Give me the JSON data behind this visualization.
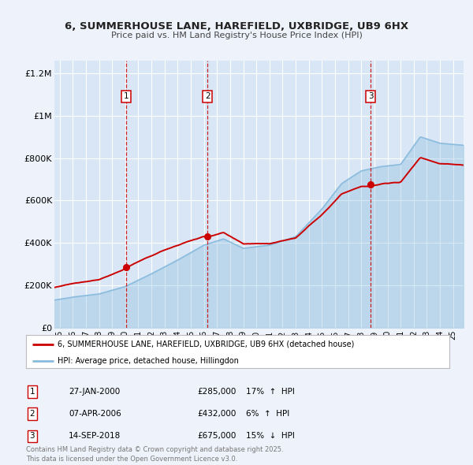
{
  "title": "6, SUMMERHOUSE LANE, HAREFIELD, UXBRIDGE, UB9 6HX",
  "subtitle": "Price paid vs. HM Land Registry's House Price Index (HPI)",
  "bg_color": "#eef2fa",
  "plot_bg_color": "#d8e6f5",
  "grid_color": "#ffffff",
  "sale_line_color": "#cc0000",
  "hpi_line_color": "#88bbdd",
  "vline_color": "#cc0000",
  "transactions": [
    {
      "num": 1,
      "date_str": "27-JAN-2000",
      "year": 2000.07,
      "price": 285000,
      "pct": "17%",
      "dir": "↑"
    },
    {
      "num": 2,
      "date_str": "07-APR-2006",
      "year": 2006.27,
      "price": 432000,
      "pct": "6%",
      "dir": "↑"
    },
    {
      "num": 3,
      "date_str": "14-SEP-2018",
      "year": 2018.71,
      "price": 675000,
      "pct": "15%",
      "dir": "↓"
    }
  ],
  "ylabel_ticks": [
    "£0",
    "£200K",
    "£400K",
    "£600K",
    "£800K",
    "£1M",
    "£1.2M"
  ],
  "ylabel_values": [
    0,
    200000,
    400000,
    600000,
    800000,
    1000000,
    1200000
  ],
  "ylim": [
    0,
    1260000
  ],
  "xlim_start": 1994.6,
  "xlim_end": 2025.8,
  "legend_label_red": "6, SUMMERHOUSE LANE, HAREFIELD, UXBRIDGE, UB9 6HX (detached house)",
  "legend_label_blue": "HPI: Average price, detached house, Hillingdon",
  "footer": "Contains HM Land Registry data © Crown copyright and database right 2025.\nThis data is licensed under the Open Government Licence v3.0."
}
